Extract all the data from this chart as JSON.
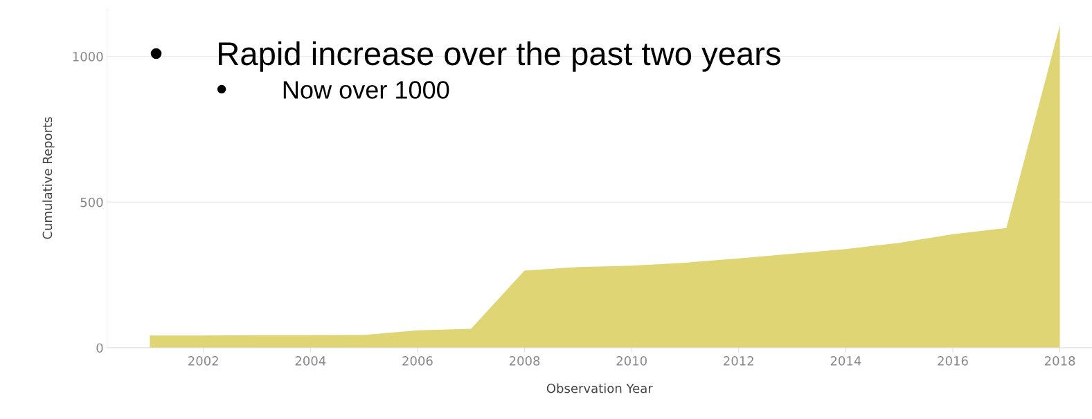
{
  "chart_data": {
    "type": "area",
    "xlabel": "Observation Year",
    "ylabel": "Cumulative Reports",
    "x": [
      2001,
      2002,
      2003,
      2004,
      2005,
      2006,
      2007,
      2008,
      2009,
      2010,
      2011,
      2012,
      2013,
      2014,
      2015,
      2016,
      2017,
      2018
    ],
    "series": [
      {
        "color": "#dfd574",
        "values": [
          42,
          42,
          43,
          43,
          44,
          60,
          65,
          265,
          277,
          282,
          292,
          307,
          323,
          339,
          360,
          390,
          411,
          1107
        ]
      }
    ],
    "xlim": [
      2000.2,
      2018.6
    ],
    "xticks": [
      2002,
      2004,
      2006,
      2008,
      2010,
      2012,
      2014,
      2016,
      2018
    ],
    "ylim": [
      0,
      1165
    ],
    "yticks": [
      0,
      500,
      1000
    ],
    "grid": "y",
    "annotations": [
      "Rapid increase over the past two years",
      "Now over 1000"
    ]
  }
}
